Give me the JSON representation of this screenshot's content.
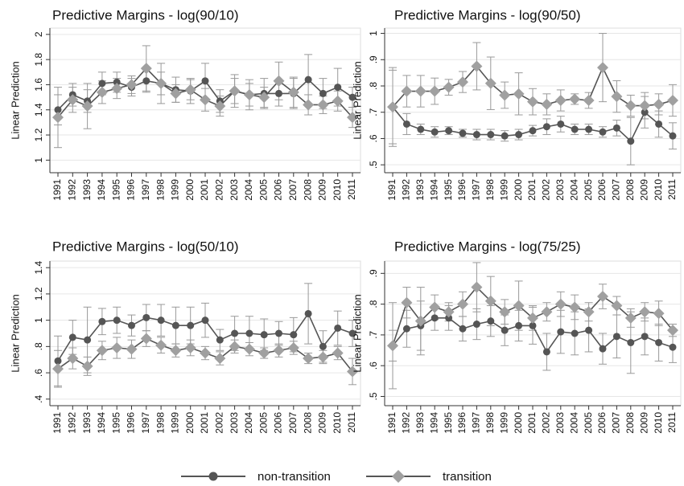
{
  "chart_data": [
    {
      "type": "line",
      "title": "Predictive Margins - log(90/10)",
      "y_label": "Linear Prediction",
      "categories": [
        "1991",
        "1992",
        "1993",
        "1994",
        "1995",
        "1996",
        "1997",
        "1998",
        "1999",
        "2000",
        "2001",
        "2002",
        "2003",
        "2004",
        "2005",
        "2006",
        "2007",
        "2008",
        "2009",
        "2010",
        "2011"
      ],
      "series": [
        {
          "name": "non-transition",
          "color": "#555555",
          "marker": "circle",
          "values": [
            1.4,
            1.52,
            1.47,
            1.61,
            1.62,
            1.58,
            1.63,
            1.61,
            1.56,
            1.55,
            1.63,
            1.47,
            1.55,
            1.52,
            1.53,
            1.53,
            1.53,
            1.64,
            1.53,
            1.58,
            1.5
          ],
          "errors": [
            0.12,
            0.09,
            0.09,
            0.09,
            0.08,
            0.07,
            0.09,
            0.09,
            0.1,
            0.1,
            0.14,
            0.09,
            0.13,
            0.12,
            0.12,
            0.1,
            0.12,
            0.2,
            0.12,
            0.15,
            0.08
          ]
        },
        {
          "name": "transition",
          "color": "#a0a0a0",
          "marker": "diamond",
          "values": [
            1.34,
            1.48,
            1.43,
            1.54,
            1.57,
            1.6,
            1.73,
            1.61,
            1.53,
            1.56,
            1.48,
            1.43,
            1.55,
            1.52,
            1.5,
            1.63,
            1.54,
            1.44,
            1.44,
            1.47,
            1.34
          ],
          "errors": [
            0.24,
            0.1,
            0.18,
            0.09,
            0.08,
            0.07,
            0.18,
            0.16,
            0.07,
            0.08,
            0.09,
            0.08,
            0.1,
            0.09,
            0.08,
            0.15,
            0.12,
            0.08,
            0.07,
            0.08,
            0.08
          ]
        }
      ],
      "ylim": [
        0.9,
        2.05
      ],
      "yticks": [
        1,
        1.2,
        1.4,
        1.6,
        1.8,
        2
      ],
      "grid": true
    },
    {
      "type": "line",
      "title": "Predictive Margins - log(90/50)",
      "y_label": "Linear Prediction",
      "categories": [
        "1991",
        "1992",
        "1993",
        "1994",
        "1995",
        "1996",
        "1997",
        "1998",
        "1999",
        "2000",
        "2001",
        "2002",
        "2003",
        "2004",
        "2005",
        "2006",
        "2007",
        "2008",
        "2009",
        "2010",
        "2011"
      ],
      "series": [
        {
          "name": "non-transition",
          "color": "#555555",
          "marker": "circle",
          "values": [
            0.72,
            0.655,
            0.635,
            0.625,
            0.63,
            0.62,
            0.615,
            0.615,
            0.61,
            0.615,
            0.63,
            0.645,
            0.655,
            0.635,
            0.635,
            0.625,
            0.64,
            0.59,
            0.7,
            0.655,
            0.61
          ],
          "errors": [
            0.15,
            0.04,
            0.02,
            0.02,
            0.015,
            0.015,
            0.02,
            0.02,
            0.02,
            0.02,
            0.02,
            0.03,
            0.03,
            0.02,
            0.02,
            0.02,
            0.03,
            0.09,
            0.06,
            0.05,
            0.05
          ]
        },
        {
          "name": "transition",
          "color": "#a0a0a0",
          "marker": "diamond",
          "values": [
            0.72,
            0.78,
            0.78,
            0.78,
            0.795,
            0.815,
            0.875,
            0.81,
            0.765,
            0.77,
            0.74,
            0.73,
            0.745,
            0.75,
            0.745,
            0.87,
            0.76,
            0.725,
            0.725,
            0.73,
            0.745
          ],
          "errors": [
            0.14,
            0.06,
            0.06,
            0.05,
            0.03,
            0.04,
            0.09,
            0.1,
            0.05,
            0.08,
            0.05,
            0.04,
            0.04,
            0.02,
            0.03,
            0.13,
            0.06,
            0.04,
            0.05,
            0.04,
            0.06
          ]
        }
      ],
      "ylim": [
        0.47,
        1.02
      ],
      "yticks": [
        {
          "value": 0.5,
          "label": ".5"
        },
        {
          "value": 0.6,
          "label": ".6"
        },
        {
          "value": 0.7,
          "label": ".7"
        },
        {
          "value": 0.8,
          "label": ".8"
        },
        {
          "value": 0.9,
          "label": ".9"
        },
        1
      ],
      "grid": true
    },
    {
      "type": "line",
      "title": "Predictive Margins - log(50/10)",
      "y_label": "Linear Prediction",
      "categories": [
        "1991",
        "1992",
        "1993",
        "1994",
        "1995",
        "1996",
        "1997",
        "1998",
        "1999",
        "2000",
        "2001",
        "2002",
        "2003",
        "2004",
        "2005",
        "2006",
        "2007",
        "2008",
        "2009",
        "2010",
        "2011"
      ],
      "series": [
        {
          "name": "non-transition",
          "color": "#555555",
          "marker": "circle",
          "values": [
            0.69,
            0.87,
            0.85,
            0.99,
            1.0,
            0.96,
            1.02,
            1.0,
            0.96,
            0.96,
            1.0,
            0.85,
            0.9,
            0.9,
            0.89,
            0.9,
            0.89,
            1.05,
            0.8,
            0.94,
            0.9
          ],
          "errors": [
            0.19,
            0.13,
            0.25,
            0.1,
            0.1,
            0.08,
            0.1,
            0.12,
            0.14,
            0.14,
            0.13,
            0.08,
            0.13,
            0.13,
            0.12,
            0.09,
            0.13,
            0.23,
            0.12,
            0.13,
            0.1
          ]
        },
        {
          "name": "transition",
          "color": "#a0a0a0",
          "marker": "diamond",
          "values": [
            0.63,
            0.71,
            0.65,
            0.77,
            0.79,
            0.78,
            0.86,
            0.81,
            0.77,
            0.79,
            0.75,
            0.71,
            0.8,
            0.78,
            0.75,
            0.77,
            0.79,
            0.71,
            0.72,
            0.75,
            0.61
          ],
          "errors": [
            0.14,
            0.08,
            0.07,
            0.07,
            0.08,
            0.07,
            0.06,
            0.06,
            0.05,
            0.06,
            0.05,
            0.05,
            0.05,
            0.05,
            0.04,
            0.05,
            0.05,
            0.04,
            0.05,
            0.05,
            0.1
          ]
        }
      ],
      "ylim": [
        0.35,
        1.45
      ],
      "yticks": [
        {
          "value": 0.4,
          "label": ".4"
        },
        {
          "value": 0.6,
          "label": ".6"
        },
        {
          "value": 0.8,
          "label": ".8"
        },
        1,
        1.2,
        1.4
      ],
      "grid": true
    },
    {
      "type": "line",
      "title": "Predictive Margins - log(75/25)",
      "y_label": "Linear Prediction",
      "categories": [
        "1991",
        "1992",
        "1993",
        "1994",
        "1995",
        "1996",
        "1997",
        "1998",
        "1999",
        "2000",
        "2001",
        "2002",
        "2003",
        "2004",
        "2005",
        "2006",
        "2007",
        "2008",
        "2009",
        "2010",
        "2011"
      ],
      "series": [
        {
          "name": "non-transition",
          "color": "#555555",
          "marker": "circle",
          "values": [
            0.665,
            0.72,
            0.73,
            0.755,
            0.755,
            0.72,
            0.735,
            0.745,
            0.715,
            0.73,
            0.73,
            0.645,
            0.71,
            0.705,
            0.715,
            0.655,
            0.695,
            0.675,
            0.695,
            0.675,
            0.66
          ],
          "errors": [
            0.14,
            0.06,
            0.08,
            0.04,
            0.04,
            0.04,
            0.05,
            0.05,
            0.05,
            0.05,
            0.06,
            0.06,
            0.07,
            0.07,
            0.07,
            0.05,
            0.07,
            0.1,
            0.06,
            0.06,
            0.05
          ]
        },
        {
          "name": "transition",
          "color": "#a0a0a0",
          "marker": "diamond",
          "values": [
            0.665,
            0.805,
            0.745,
            0.79,
            0.775,
            0.8,
            0.855,
            0.81,
            0.775,
            0.795,
            0.755,
            0.775,
            0.8,
            0.79,
            0.775,
            0.825,
            0.795,
            0.755,
            0.775,
            0.77,
            0.715
          ],
          "errors": [
            0.05,
            0.05,
            0.11,
            0.04,
            0.03,
            0.04,
            0.08,
            0.08,
            0.04,
            0.08,
            0.04,
            0.03,
            0.04,
            0.04,
            0.03,
            0.04,
            0.03,
            0.03,
            0.03,
            0.04,
            0.02
          ]
        }
      ],
      "ylim": [
        0.47,
        0.94
      ],
      "yticks": [
        {
          "value": 0.5,
          "label": ".5"
        },
        {
          "value": 0.6,
          "label": ".6"
        },
        {
          "value": 0.7,
          "label": ".7"
        },
        {
          "value": 0.8,
          "label": ".8"
        },
        {
          "value": 0.9,
          "label": ".9"
        }
      ],
      "grid": true
    }
  ]
}
